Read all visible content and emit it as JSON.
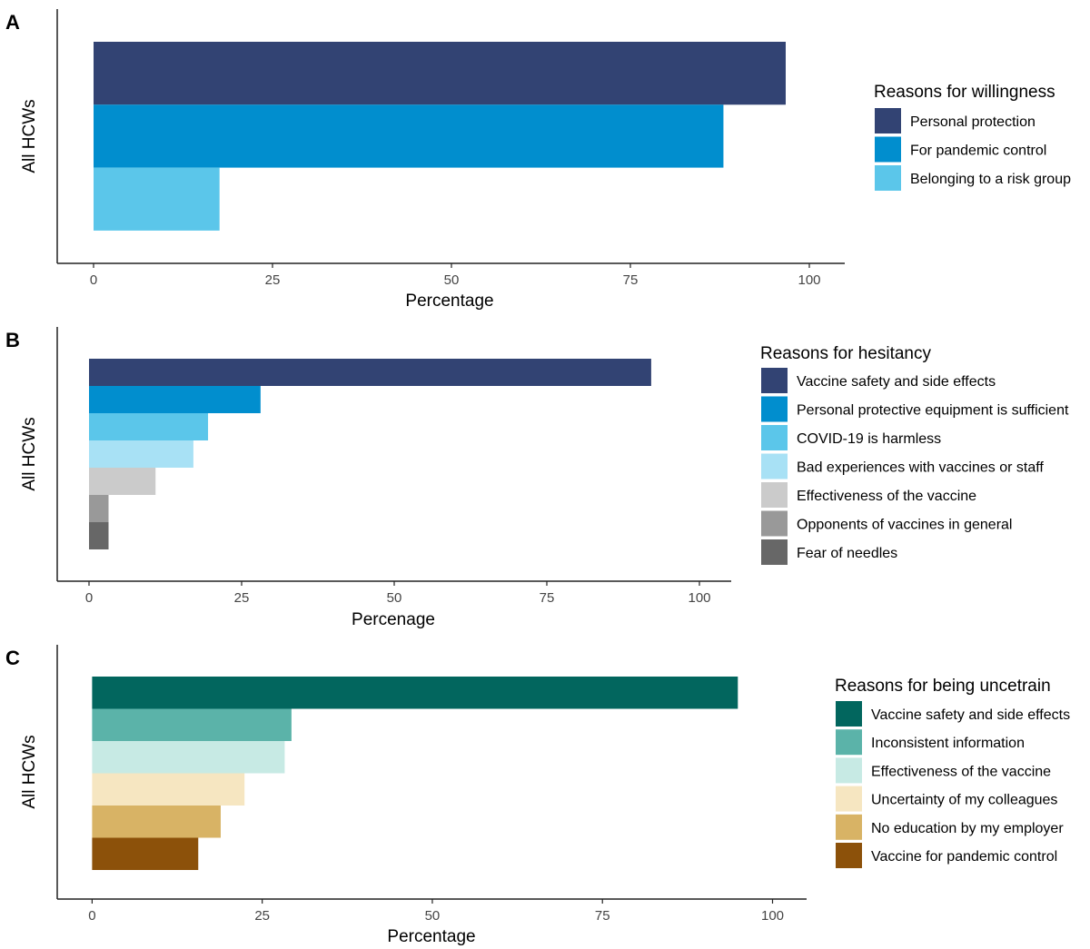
{
  "chart_data": [
    {
      "type": "bar",
      "orientation": "horizontal",
      "panel_label": "A",
      "title": "",
      "xlabel": "Percentage",
      "ylabel": "All HCWs",
      "xlim": [
        0,
        100
      ],
      "xticks": [
        "0",
        "25",
        "50",
        "75",
        "100"
      ],
      "legend_title": "Reasons for willingness",
      "legend_position": "right",
      "categories": [
        "Personal protection",
        "For pandemic control",
        "Belonging to a risk group"
      ],
      "values": [
        96.7,
        88.0,
        17.6
      ],
      "colors": [
        "#324373",
        "#018ECE",
        "#5BC6EA"
      ]
    },
    {
      "type": "bar",
      "orientation": "horizontal",
      "panel_label": "B",
      "title": "",
      "xlabel": "Percenage",
      "ylabel": "All HCWs",
      "xlim": [
        0,
        100
      ],
      "xticks": [
        "0",
        "25",
        "50",
        "75",
        "100"
      ],
      "legend_title": "Reasons for hesitancy",
      "legend_position": "right",
      "categories": [
        "Vaccine safety and side effects",
        "Personal protective equipment is sufficient",
        "COVID-19 is harmless",
        "Bad experiences with vaccines or staff",
        "Effectiveness of the vaccine",
        "Opponents of vaccines in general",
        "Fear of needles"
      ],
      "values": [
        92.1,
        28.1,
        19.5,
        17.1,
        10.9,
        3.2,
        3.2
      ],
      "colors": [
        "#324373",
        "#018ECE",
        "#5BC6EA",
        "#A8E1F5",
        "#CBCBCB",
        "#999999",
        "#676767"
      ]
    },
    {
      "type": "bar",
      "orientation": "horizontal",
      "panel_label": "C",
      "title": "",
      "xlabel": "Percentage",
      "ylabel": "All HCWs",
      "xlim": [
        0,
        100
      ],
      "xticks": [
        "0",
        "25",
        "50",
        "75",
        "100"
      ],
      "legend_title": "Reasons for being uncetrain",
      "legend_position": "right",
      "categories": [
        "Vaccine safety and side effects",
        "Inconsistent information",
        "Effectiveness of the vaccine",
        "Uncertainty of my colleagues",
        "No education by my employer",
        "Vaccine for pandemic control"
      ],
      "values": [
        94.9,
        29.3,
        28.3,
        22.4,
        18.9,
        15.6
      ],
      "colors": [
        "#02665E",
        "#5BB3A9",
        "#C7EAE4",
        "#F6E6C1",
        "#D8B365",
        "#8C510A"
      ]
    }
  ]
}
